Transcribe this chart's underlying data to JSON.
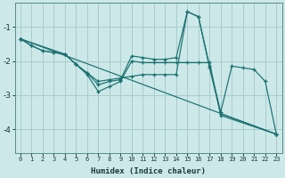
{
  "xlabel": "Humidex (Indice chaleur)",
  "ylabel": "",
  "background_color": "#cce8e8",
  "grid_color": "#aacccc",
  "line_color": "#1a7070",
  "xlim": [
    -0.5,
    23.5
  ],
  "ylim": [
    -4.7,
    -0.3
  ],
  "yticks": [
    -4,
    -3,
    -2,
    -1
  ],
  "xticks": [
    0,
    1,
    2,
    3,
    4,
    5,
    6,
    7,
    8,
    9,
    10,
    11,
    12,
    13,
    14,
    15,
    16,
    17,
    18,
    19,
    20,
    21,
    22,
    23
  ],
  "series": [
    {
      "x": [
        0,
        1,
        2,
        3,
        4,
        5,
        6,
        7,
        8,
        9,
        10,
        11,
        12,
        13,
        14,
        15,
        16,
        17,
        18,
        19,
        20,
        21,
        22,
        23
      ],
      "y": [
        -1.35,
        -1.55,
        -1.7,
        -1.75,
        -1.8,
        -2.1,
        -2.35,
        -2.7,
        -2.6,
        -2.55,
        -1.85,
        -1.9,
        -1.95,
        -1.95,
        -1.9,
        -0.55,
        -0.7,
        -2.15,
        -3.5,
        -2.15,
        -2.2,
        -2.25,
        -2.6,
        -4.15
      ]
    },
    {
      "x": [
        0,
        1,
        2,
        3,
        4,
        5,
        6,
        7,
        8,
        9,
        10,
        11,
        12,
        13,
        14,
        15,
        16,
        17,
        18,
        23
      ],
      "y": [
        -1.35,
        -1.55,
        -1.7,
        -1.75,
        -1.8,
        -2.1,
        -2.4,
        -2.9,
        -2.75,
        -2.6,
        -2.0,
        -2.05,
        -2.05,
        -2.05,
        -2.05,
        -2.05,
        -2.05,
        -2.05,
        -3.6,
        -4.15
      ]
    },
    {
      "x": [
        0,
        4,
        5,
        6,
        7,
        8,
        9,
        10,
        11,
        12,
        13,
        14,
        15,
        16,
        17,
        18,
        23
      ],
      "y": [
        -1.35,
        -1.8,
        -2.1,
        -2.35,
        -2.6,
        -2.55,
        -2.5,
        -2.45,
        -2.4,
        -2.4,
        -2.4,
        -2.4,
        -0.55,
        -0.7,
        -2.2,
        -3.55,
        -4.15
      ]
    },
    {
      "x": [
        0,
        23
      ],
      "y": [
        -1.35,
        -4.15
      ]
    }
  ]
}
